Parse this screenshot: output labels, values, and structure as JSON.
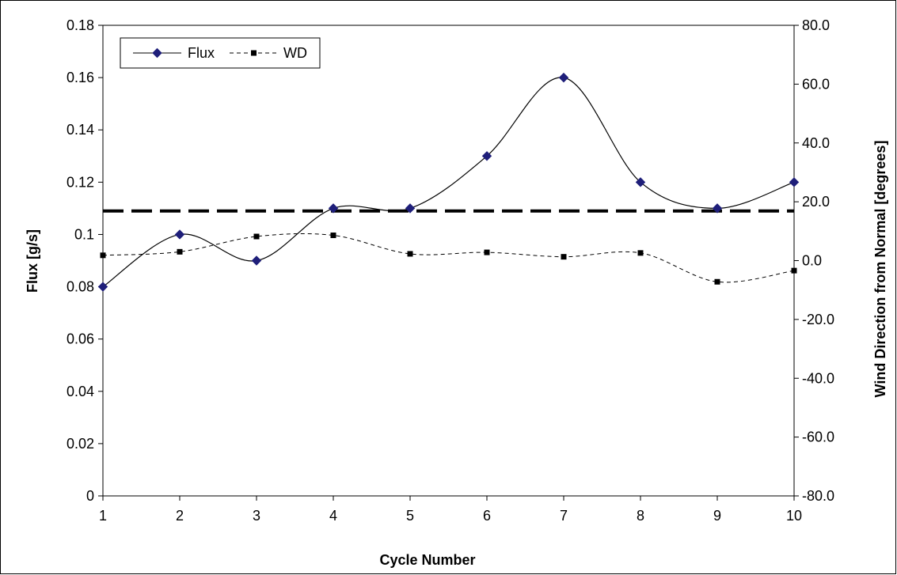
{
  "chart_data": {
    "type": "line",
    "title": "",
    "xlabel": "Cycle Number",
    "ylabel": "Flux [g/s]",
    "y2label": "Wind Direction from Normal [degrees]",
    "x": [
      1,
      2,
      3,
      4,
      5,
      6,
      7,
      8,
      9,
      10
    ],
    "x_ticks": [
      "1",
      "2",
      "3",
      "4",
      "5",
      "6",
      "7",
      "8",
      "9",
      "10"
    ],
    "ylim": [
      0,
      0.18
    ],
    "y_ticks": [
      "0",
      "0.02",
      "0.04",
      "0.06",
      "0.08",
      "0.1",
      "0.12",
      "0.14",
      "0.16",
      "0.18"
    ],
    "y2lim": [
      -80,
      80
    ],
    "y2_ticks": [
      "-80.0",
      "-60.0",
      "-40.0",
      "-20.0",
      "0.0",
      "20.0",
      "40.0",
      "60.0",
      "80.0"
    ],
    "series": [
      {
        "name": "Flux",
        "axis": "left",
        "style": "solid smoothed line with diamond markers",
        "color": "#000000",
        "marker_color": "#1f1f7a",
        "values": [
          0.08,
          0.1,
          0.09,
          0.11,
          0.11,
          0.13,
          0.16,
          0.12,
          0.11,
          0.12
        ]
      },
      {
        "name": "WD",
        "axis": "right",
        "style": "dashed smoothed line with square markers",
        "color": "#000000",
        "marker_color": "#000000",
        "values": [
          1.8,
          3.0,
          8.2,
          8.6,
          2.3,
          2.8,
          1.3,
          2.6,
          -7.2,
          -3.4
        ]
      }
    ],
    "reference_line": {
      "axis": "left",
      "value": 0.109,
      "style": "thick long-dash",
      "color": "#000000"
    },
    "legend_position": "top-left",
    "grid": false
  }
}
